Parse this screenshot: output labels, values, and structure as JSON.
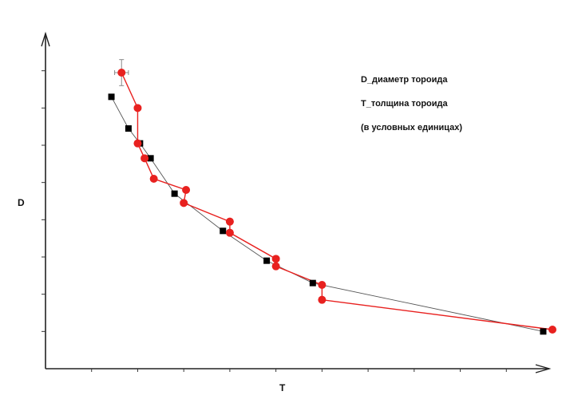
{
  "chart_data": {
    "type": "scatter",
    "xlabel": "T",
    "ylabel": "D",
    "xlim": [
      0,
      11
    ],
    "ylim": [
      0,
      9
    ],
    "grid": false,
    "annotations": [
      "D_диаметр тороида",
      "T_толщина тороида",
      "(в условных единицах)"
    ],
    "series": [
      {
        "marker": "square",
        "color": "#000000",
        "line_color": "#555555",
        "x": [
          1.43,
          1.8,
          2.05,
          2.28,
          2.8,
          3.85,
          4.8,
          5.8,
          10.8
        ],
        "y": [
          7.3,
          6.45,
          6.05,
          5.65,
          4.7,
          3.7,
          2.9,
          2.3,
          1.0
        ]
      },
      {
        "marker": "circle",
        "color": "#e8211f",
        "line_color": "#e8211f",
        "x": [
          1.65,
          2.0,
          2.0,
          2.15,
          2.35,
          3.05,
          3.0,
          4.0,
          4.0,
          5.0,
          5.0,
          6.0,
          6.0,
          11.0
        ],
        "y": [
          7.95,
          7.0,
          6.05,
          5.65,
          5.1,
          4.8,
          4.45,
          3.95,
          3.65,
          2.95,
          2.75,
          2.25,
          1.85,
          1.05
        ],
        "error_bar_first": {
          "x": 0.15,
          "y": 0.35
        }
      }
    ]
  }
}
